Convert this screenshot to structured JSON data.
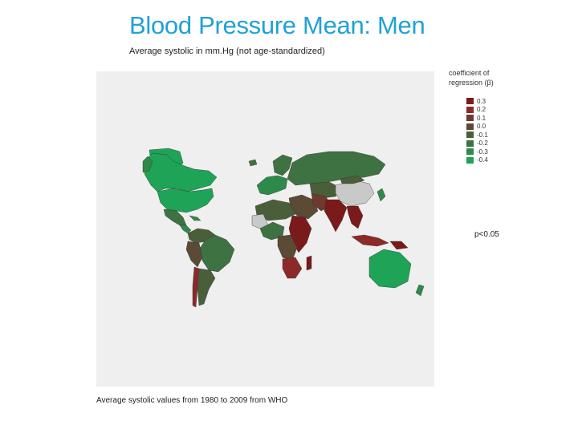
{
  "title": "Blood Pressure Mean: Men",
  "subtitle": "Average systolic in mm.Hg (not age-standardized)",
  "legend": {
    "title": "coefficient of regression  (β)",
    "items": [
      {
        "label": "0.3",
        "color": "#7a1a1a"
      },
      {
        "label": "0.2",
        "color": "#8c2a2a"
      },
      {
        "label": "0.1",
        "color": "#6e3a30"
      },
      {
        "label": "0.0",
        "color": "#5b4a35"
      },
      {
        "label": "-0.1",
        "color": "#4a5e3a"
      },
      {
        "label": "-0.2",
        "color": "#3e7242"
      },
      {
        "label": "-0.3",
        "color": "#2e8a4a"
      },
      {
        "label": "-0.4",
        "color": "#1ea357"
      }
    ]
  },
  "significance_note": "p<0.05",
  "caption": "Average systolic values from 1980 to 2009 from WHO",
  "colors": {
    "title": "#1fa2d6",
    "map_background": "#efefef",
    "no_data": "#c9c9c9"
  }
}
